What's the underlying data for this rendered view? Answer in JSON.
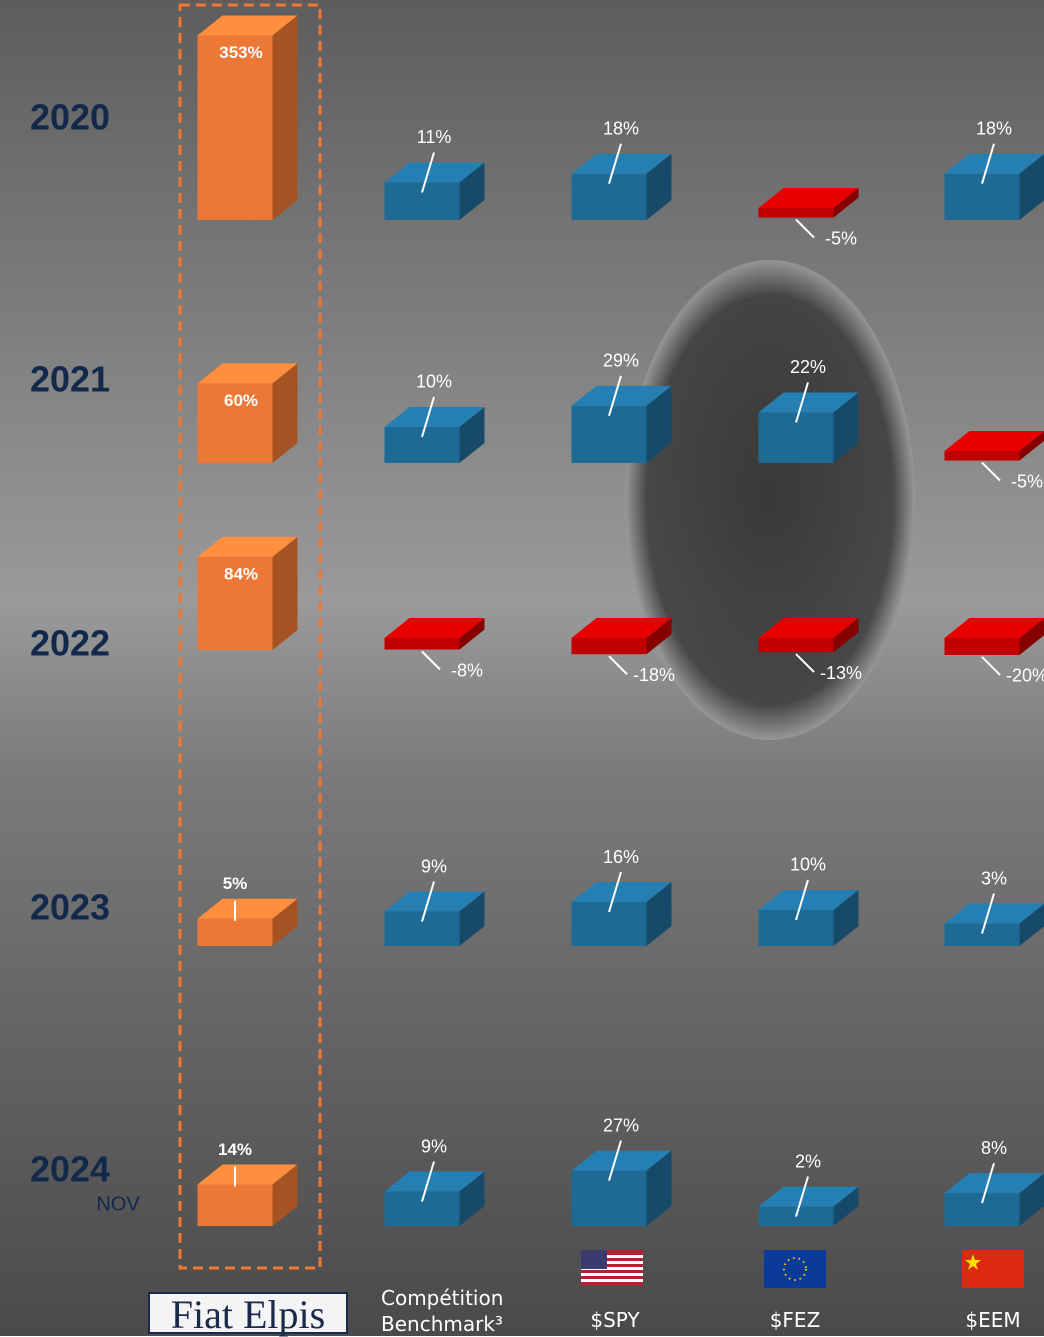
{
  "chart_data": {
    "type": "bar3d",
    "categories": [
      "2020",
      "2021",
      "2022",
      "2023",
      "2024"
    ],
    "annotations": [
      "NOV"
    ],
    "negative_color": "#c00000",
    "series": [
      {
        "name": "Fiat Elpis",
        "color": "#ed7734",
        "values": [
          353,
          60,
          84,
          5,
          14
        ],
        "value_labels": [
          "353%",
          "60%",
          "84%",
          "5%",
          "14%"
        ]
      },
      {
        "name": "Compétition Benchmark³",
        "color": "#1f6a94",
        "values": [
          11,
          10,
          -8,
          9,
          9
        ],
        "value_labels": [
          "11%",
          "10%",
          "-8%",
          "9%",
          "9%"
        ]
      },
      {
        "name": "$SPY",
        "color": "#1f6a94",
        "values": [
          18,
          29,
          -18,
          16,
          27
        ],
        "value_labels": [
          "18%",
          "29%",
          "-18%",
          "16%",
          "27%"
        ]
      },
      {
        "name": "$FEZ",
        "color": "#1f6a94",
        "values": [
          -5,
          22,
          -13,
          10,
          2
        ],
        "value_labels": [
          "-5%",
          "22%",
          "-13%",
          "10%",
          "2%"
        ]
      },
      {
        "name": "$EEM",
        "color": "#1f6a94",
        "values": [
          18,
          -5,
          -20,
          3,
          8
        ],
        "value_labels": [
          "18%",
          "-5%",
          "-20%",
          "3%",
          "8%"
        ]
      }
    ]
  }
}
